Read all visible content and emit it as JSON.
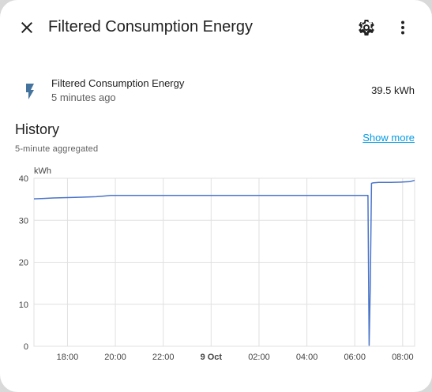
{
  "dialog": {
    "title": "Filtered Consumption Energy",
    "close_icon": "close-icon",
    "settings_icon": "gear-icon",
    "more_icon": "more-vertical-icon"
  },
  "entity": {
    "icon": "flash-icon",
    "name": "Filtered Consumption Energy",
    "last_changed": "5 minutes ago",
    "state": "39.5 kWh"
  },
  "history": {
    "title": "History",
    "subtitle": "5-minute aggregated",
    "show_more": "Show more"
  },
  "colors": {
    "accent": "#039be5",
    "series_line": "#4a74c9",
    "icon": "#44739e"
  },
  "chart_data": {
    "type": "line",
    "ylabel": "kWh",
    "ylim": [
      0,
      40
    ],
    "y_ticks": [
      "0",
      "10",
      "20",
      "30",
      "40"
    ],
    "x_ticks": [
      {
        "label": "18:00",
        "x": 18,
        "bold": false
      },
      {
        "label": "20:00",
        "x": 20,
        "bold": false
      },
      {
        "label": "22:00",
        "x": 22,
        "bold": false
      },
      {
        "label": "9 Oct",
        "x": 24,
        "bold": true
      },
      {
        "label": "02:00",
        "x": 26,
        "bold": false
      },
      {
        "label": "04:00",
        "x": 28,
        "bold": false
      },
      {
        "label": "06:00",
        "x": 30,
        "bold": false
      },
      {
        "label": "08:00",
        "x": 32,
        "bold": false
      }
    ],
    "xlim": [
      16.6,
      32.5
    ],
    "grid": true,
    "series": [
      {
        "x": [
          16.6,
          17.0,
          17.4,
          18.0,
          18.6,
          19.2,
          19.6,
          19.8,
          20.2,
          21.0,
          22.0,
          23.0,
          24.0,
          26.0,
          28.0,
          30.0,
          30.55,
          30.6,
          30.65,
          30.7,
          30.75,
          31.0,
          31.5,
          32.0,
          32.3,
          32.5
        ],
        "y": [
          35.1,
          35.2,
          35.3,
          35.4,
          35.5,
          35.6,
          35.8,
          35.9,
          35.9,
          35.9,
          35.9,
          35.9,
          35.9,
          35.9,
          35.9,
          35.9,
          35.9,
          0.2,
          15.0,
          38.8,
          38.9,
          39.0,
          39.0,
          39.1,
          39.2,
          39.5
        ]
      }
    ]
  }
}
